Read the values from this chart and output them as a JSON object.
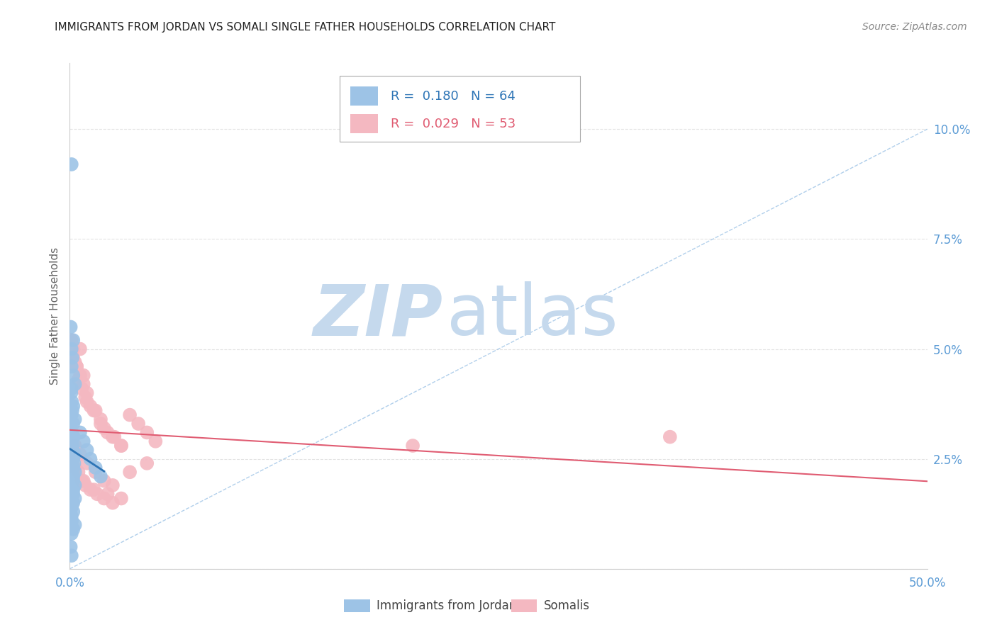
{
  "title": "IMMIGRANTS FROM JORDAN VS SOMALI SINGLE FATHER HOUSEHOLDS CORRELATION CHART",
  "source": "Source: ZipAtlas.com",
  "ylabel": "Single Father Households",
  "xlim": [
    0.0,
    0.5
  ],
  "ylim": [
    0.0,
    0.115
  ],
  "xticks": [
    0.0,
    0.1,
    0.2,
    0.3,
    0.4,
    0.5
  ],
  "xticklabels": [
    "0.0%",
    "",
    "",
    "",
    "",
    "50.0%"
  ],
  "yticks": [
    0.0,
    0.025,
    0.05,
    0.075,
    0.1
  ],
  "yticklabels": [
    "",
    "2.5%",
    "5.0%",
    "7.5%",
    "10.0%"
  ],
  "legend_blue_R": "0.180",
  "legend_blue_N": "64",
  "legend_pink_R": "0.029",
  "legend_pink_N": "53",
  "blue_color": "#9dc3e6",
  "pink_color": "#f4b8c1",
  "line_blue_color": "#2e75b6",
  "line_pink_color": "#e05c72",
  "diag_line_color": "#9dc3e6",
  "watermark_zip": "ZIP",
  "watermark_atlas": "atlas",
  "watermark_zip_color": "#c5d9ed",
  "watermark_atlas_color": "#c5d9ed",
  "background_color": "#ffffff",
  "grid_color": "#e0e0e0",
  "blue_points_x": [
    0.001,
    0.0005,
    0.002,
    0.001,
    0.0015,
    0.001,
    0.002,
    0.003,
    0.001,
    0.0008,
    0.0012,
    0.002,
    0.0015,
    0.001,
    0.003,
    0.002,
    0.0005,
    0.001,
    0.0018,
    0.0022,
    0.001,
    0.0008,
    0.0015,
    0.002,
    0.001,
    0.003,
    0.002,
    0.0012,
    0.001,
    0.0025,
    0.002,
    0.001,
    0.0008,
    0.003,
    0.002,
    0.001,
    0.0015,
    0.002,
    0.001,
    0.003,
    0.002,
    0.001,
    0.0005,
    0.002,
    0.001,
    0.003,
    0.0015,
    0.002,
    0.001,
    0.0008,
    0.002,
    0.001,
    0.0012,
    0.003,
    0.002,
    0.001,
    0.006,
    0.008,
    0.01,
    0.012,
    0.015,
    0.018,
    0.0005,
    0.001
  ],
  "blue_points_y": [
    0.092,
    0.055,
    0.052,
    0.05,
    0.048,
    0.046,
    0.044,
    0.042,
    0.041,
    0.04,
    0.038,
    0.037,
    0.036,
    0.035,
    0.034,
    0.033,
    0.032,
    0.031,
    0.03,
    0.03,
    0.029,
    0.028,
    0.028,
    0.027,
    0.027,
    0.026,
    0.025,
    0.025,
    0.024,
    0.024,
    0.023,
    0.023,
    0.022,
    0.022,
    0.021,
    0.021,
    0.02,
    0.02,
    0.019,
    0.019,
    0.018,
    0.018,
    0.017,
    0.017,
    0.016,
    0.016,
    0.015,
    0.015,
    0.014,
    0.014,
    0.013,
    0.012,
    0.011,
    0.01,
    0.009,
    0.008,
    0.031,
    0.029,
    0.027,
    0.025,
    0.023,
    0.021,
    0.005,
    0.003
  ],
  "pink_points_x": [
    0.001,
    0.002,
    0.004,
    0.006,
    0.008,
    0.003,
    0.005,
    0.007,
    0.009,
    0.01,
    0.012,
    0.015,
    0.018,
    0.02,
    0.025,
    0.03,
    0.035,
    0.04,
    0.045,
    0.05,
    0.002,
    0.004,
    0.006,
    0.008,
    0.01,
    0.014,
    0.018,
    0.022,
    0.026,
    0.03,
    0.001,
    0.003,
    0.005,
    0.007,
    0.009,
    0.012,
    0.016,
    0.02,
    0.025,
    0.003,
    0.006,
    0.01,
    0.015,
    0.02,
    0.025,
    0.035,
    0.045,
    0.2,
    0.35,
    0.008,
    0.014,
    0.022,
    0.03
  ],
  "pink_points_y": [
    0.052,
    0.048,
    0.046,
    0.05,
    0.044,
    0.047,
    0.043,
    0.041,
    0.039,
    0.038,
    0.037,
    0.036,
    0.034,
    0.032,
    0.03,
    0.028,
    0.035,
    0.033,
    0.031,
    0.029,
    0.05,
    0.046,
    0.044,
    0.042,
    0.04,
    0.036,
    0.033,
    0.031,
    0.03,
    0.028,
    0.025,
    0.023,
    0.022,
    0.02,
    0.019,
    0.018,
    0.017,
    0.016,
    0.015,
    0.028,
    0.026,
    0.024,
    0.022,
    0.02,
    0.019,
    0.022,
    0.024,
    0.028,
    0.03,
    0.02,
    0.018,
    0.017,
    0.016
  ]
}
